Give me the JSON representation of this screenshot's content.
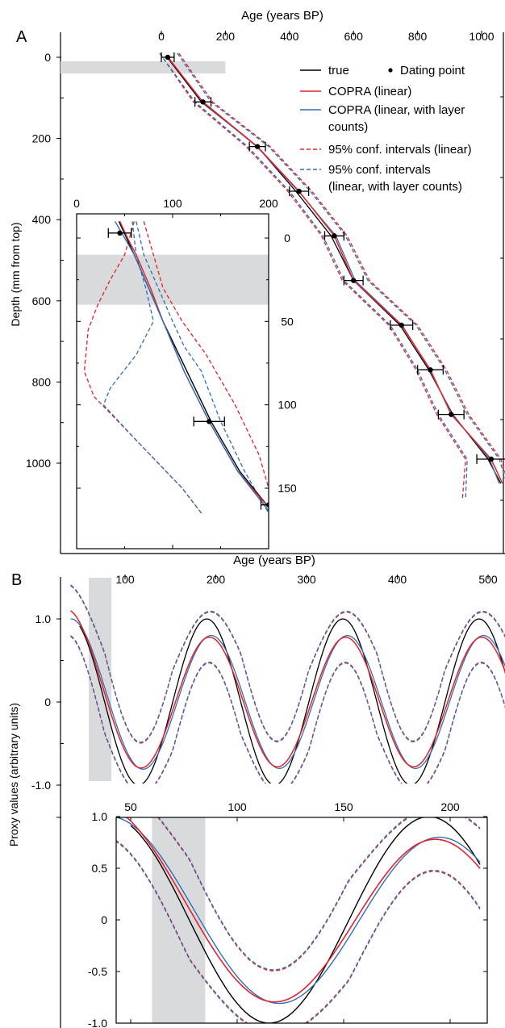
{
  "panels": {
    "A": {
      "letter": "A",
      "xlabel": "Age (years BP)",
      "ylabel": "Depth (mm from top)",
      "xticks": [
        "0",
        "200",
        "400",
        "600",
        "800",
        "1000"
      ],
      "yticks": [
        "0",
        "200",
        "400",
        "600",
        "800",
        "1000"
      ],
      "legend": [
        {
          "label": "true",
          "color": "#000000",
          "style": "solid"
        },
        {
          "label": "Dating point",
          "color": "#000000",
          "style": "dot"
        },
        {
          "label": "COPRA (linear)",
          "color": "#e8202a",
          "style": "solid"
        },
        {
          "label": "COPRA (linear, with layer counts)",
          "color": "#2e6fba",
          "style": "solid"
        },
        {
          "label": "95% conf. intervals (linear)",
          "color": "#e8202a",
          "style": "dashed"
        },
        {
          "label": "95% conf. intervals (linear, with layer counts)",
          "color": "#2e6fba",
          "style": "dashed"
        }
      ],
      "inset": {
        "xticks": [
          "0",
          "100",
          "200"
        ],
        "yticks": [
          "0",
          "50",
          "100",
          "150"
        ]
      }
    },
    "B": {
      "letter": "B",
      "xlabel": "Age (years BP)",
      "ylabel": "Proxy values (arbitrary units)",
      "xticks": [
        "100",
        "200",
        "300",
        "400",
        "500"
      ],
      "yticks": [
        "1.0",
        "0",
        "-1.0"
      ],
      "inset": {
        "xticks": [
          "50",
          "100",
          "150",
          "200"
        ],
        "yticks": [
          "1.0",
          "0.5",
          "0",
          "-0.5",
          "-1.0"
        ]
      }
    }
  },
  "chart_data": [
    {
      "type": "line",
      "panel": "A",
      "xlabel": "Age (years BP)",
      "ylabel": "Depth (mm from top)",
      "xlim": [
        0,
        1050
      ],
      "ylim": [
        1150,
        -40
      ],
      "x_axis_position": "top",
      "shaded_band": {
        "x": [
          -250,
          200
        ],
        "y": [
          10,
          40
        ]
      },
      "dating_points": [
        {
          "depth": 0,
          "age": 20,
          "err": 20
        },
        {
          "depth": 110,
          "age": 130,
          "err": 25
        },
        {
          "depth": 220,
          "age": 300,
          "err": 25
        },
        {
          "depth": 330,
          "age": 430,
          "err": 30
        },
        {
          "depth": 440,
          "age": 540,
          "err": 30
        },
        {
          "depth": 550,
          "age": 600,
          "err": 30
        },
        {
          "depth": 660,
          "age": 750,
          "err": 35
        },
        {
          "depth": 770,
          "age": 840,
          "err": 40
        },
        {
          "depth": 880,
          "age": 905,
          "err": 40
        },
        {
          "depth": 990,
          "age": 1030,
          "err": 45
        }
      ],
      "series": [
        {
          "name": "true",
          "color": "#000000",
          "depth": [
            0,
            110,
            220,
            330,
            440,
            550,
            660,
            770,
            880,
            990,
            1050
          ],
          "age": [
            18,
            125,
            300,
            420,
            530,
            600,
            745,
            835,
            910,
            1020,
            1060
          ]
        },
        {
          "name": "COPRA (linear)",
          "color": "#e8202a",
          "depth": [
            0,
            110,
            220,
            330,
            440,
            550,
            660,
            770,
            880,
            990,
            1050
          ],
          "age": [
            20,
            130,
            300,
            430,
            540,
            600,
            750,
            840,
            905,
            1030,
            1065
          ]
        },
        {
          "name": "COPRA (linear, with layer counts)",
          "color": "#2e6fba",
          "depth": [
            0,
            110,
            220,
            330,
            440,
            550,
            660,
            770,
            880,
            990,
            1050
          ],
          "age": [
            22,
            128,
            298,
            428,
            545,
            605,
            752,
            838,
            908,
            1025,
            1055
          ]
        },
        {
          "name": "95% conf. intervals (linear)",
          "color": "#e8202a",
          "dashed": true,
          "depth": [
            -10,
            110,
            220,
            330,
            440,
            550,
            660,
            770,
            880,
            990,
            1090
          ],
          "lower": [
            -5,
            100,
            265,
            395,
            500,
            565,
            710,
            795,
            860,
            950,
            940
          ],
          "upper": [
            55,
            160,
            340,
            470,
            580,
            650,
            800,
            890,
            960,
            1060,
            1100
          ]
        },
        {
          "name": "95% conf. intervals (linear, with layer counts)",
          "color": "#2e6fba",
          "dashed": true,
          "depth": [
            -10,
            110,
            220,
            330,
            440,
            550,
            660,
            770,
            880,
            990,
            1090
          ],
          "lower": [
            -5,
            105,
            270,
            400,
            505,
            570,
            715,
            800,
            865,
            955,
            950
          ],
          "upper": [
            50,
            155,
            335,
            465,
            575,
            645,
            795,
            885,
            955,
            1055,
            1095
          ]
        }
      ]
    },
    {
      "type": "line",
      "panel": "A-inset",
      "xlim": [
        0,
        200
      ],
      "ylim": [
        160,
        -10
      ],
      "dating_points": [
        {
          "depth": -3,
          "age": 45,
          "err": 12
        },
        {
          "depth": 110,
          "age": 138,
          "err": 16
        },
        {
          "depth": 160,
          "age": 200,
          "err": 8
        }
      ],
      "shaded_band": {
        "y": [
          10,
          40
        ]
      },
      "series": [
        {
          "name": "true",
          "color": "#000000",
          "depth": [
            -10,
            0,
            10,
            30,
            50,
            80,
            110,
            140,
            165
          ],
          "age": [
            44,
            52,
            60,
            75,
            90,
            115,
            140,
            170,
            205
          ]
        },
        {
          "name": "COPRA (linear)",
          "color": "#e8202a",
          "depth": [
            -10,
            0,
            10,
            30,
            50,
            80,
            110,
            140,
            165
          ],
          "age": [
            45,
            53,
            62,
            77,
            90,
            112,
            138,
            168,
            205
          ]
        },
        {
          "name": "COPRA (linear, with layer counts)",
          "color": "#2e6fba",
          "depth": [
            -10,
            0,
            10,
            30,
            50,
            80,
            110,
            140,
            165
          ],
          "age": [
            40,
            50,
            60,
            75,
            90,
            112,
            138,
            168,
            202
          ]
        }
      ]
    },
    {
      "type": "line",
      "panel": "B",
      "xlabel": "Age (years BP)",
      "ylabel": "Proxy values (arbitrary units)",
      "xlim": [
        0,
        515
      ],
      "ylim": [
        -1.3,
        1.3
      ],
      "x_axis_position": "top",
      "shaded_band": {
        "x": [
          60,
          85
        ]
      },
      "series": [
        {
          "name": "true",
          "color": "#000000"
        },
        {
          "name": "COPRA (linear)",
          "color": "#e8202a"
        },
        {
          "name": "COPRA (linear, with layer counts)",
          "color": "#2e6fba"
        },
        {
          "name": "95% conf. intervals (linear)",
          "color": "#e8202a",
          "dashed": true
        },
        {
          "name": "95% conf. intervals (linear, with layer counts)",
          "color": "#2e6fba",
          "dashed": true
        }
      ]
    },
    {
      "type": "line",
      "panel": "B-inset",
      "xlim": [
        30,
        210
      ],
      "ylim": [
        -1.1,
        1.15
      ],
      "shaded_band": {
        "x": [
          60,
          85
        ]
      }
    }
  ]
}
